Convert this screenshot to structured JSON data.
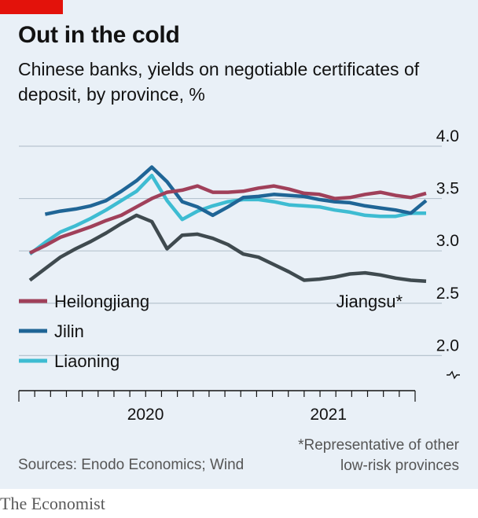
{
  "header": {
    "title": "Out in the cold",
    "subtitle": "Chinese banks, yields on negotiable certificates of deposit, by province, %"
  },
  "footer": {
    "source": "Sources: Enodo Economics; Wind",
    "footnote_line1": "*Representative of other",
    "footnote_line2": "low-risk provinces",
    "brand": "The Economist"
  },
  "colors": {
    "background": "#e9f0f7",
    "accent": "#e3120b",
    "grid": "#b7c4cf",
    "Heilongjiang": "#a0405a",
    "Jilin": "#1f6596",
    "Liaoning": "#3ebcd2",
    "Jiangsu": "#3f4a4f"
  },
  "chart_data": {
    "type": "line",
    "ylim": [
      1.95,
      4.0
    ],
    "y_ticks": [
      2.0,
      2.5,
      3.0,
      3.5,
      4.0
    ],
    "y_tick_labels": [
      "2.0",
      "2.5",
      "3.0",
      "3.5",
      "4.0"
    ],
    "y_axis_broken": true,
    "grid": true,
    "x_tick_labels": [
      {
        "label": "2020",
        "x": "2020-06"
      },
      {
        "label": "2021",
        "x": "2021-06"
      }
    ],
    "x_ticks": [
      "2019-10",
      "2019-11",
      "2019-12",
      "2020-01",
      "2020-02",
      "2020-03",
      "2020-04",
      "2020-05",
      "2020-06",
      "2020-07",
      "2020-08",
      "2020-09",
      "2020-10",
      "2020-11",
      "2020-12",
      "2021-01",
      "2021-02",
      "2021-03",
      "2021-04",
      "2021-05",
      "2021-06",
      "2021-07",
      "2021-08",
      "2021-09",
      "2021-10",
      "2021-11",
      "2021-12"
    ],
    "x": [
      "2019-10",
      "2019-11",
      "2019-12",
      "2020-01",
      "2020-02",
      "2020-03",
      "2020-04",
      "2020-05",
      "2020-06",
      "2020-07",
      "2020-08",
      "2020-09",
      "2020-10",
      "2020-11",
      "2020-12",
      "2021-01",
      "2021-02",
      "2021-03",
      "2021-04",
      "2021-05",
      "2021-06",
      "2021-07",
      "2021-08",
      "2021-09",
      "2021-10",
      "2021-11",
      "2021-12"
    ],
    "series": [
      {
        "name": "Heilongjiang",
        "values": [
          2.98,
          3.05,
          3.13,
          3.18,
          3.23,
          3.29,
          3.34,
          3.42,
          3.5,
          3.56,
          3.58,
          3.62,
          3.56,
          3.56,
          3.57,
          3.6,
          3.62,
          3.59,
          3.55,
          3.54,
          3.5,
          3.51,
          3.54,
          3.56,
          3.53,
          3.51,
          3.55
        ]
      },
      {
        "name": "Jilin",
        "values": [
          null,
          3.35,
          3.38,
          3.4,
          3.43,
          3.48,
          3.57,
          3.67,
          3.8,
          3.66,
          3.47,
          3.42,
          3.34,
          3.42,
          3.51,
          3.52,
          3.54,
          3.53,
          3.52,
          3.49,
          3.47,
          3.46,
          3.43,
          3.41,
          3.39,
          3.36,
          3.48
        ]
      },
      {
        "name": "Liaoning",
        "values": [
          2.97,
          3.08,
          3.18,
          3.24,
          3.31,
          3.39,
          3.48,
          3.57,
          3.72,
          3.48,
          3.3,
          3.38,
          3.43,
          3.47,
          3.49,
          3.49,
          3.47,
          3.44,
          3.43,
          3.42,
          3.39,
          3.37,
          3.34,
          3.33,
          3.33,
          3.36,
          3.36
        ]
      },
      {
        "name": "Jiangsu*",
        "values": [
          2.72,
          2.83,
          2.94,
          3.02,
          3.09,
          3.17,
          3.26,
          3.34,
          3.28,
          3.02,
          3.15,
          3.16,
          3.12,
          3.06,
          2.97,
          2.94,
          2.87,
          2.8,
          2.72,
          2.73,
          2.75,
          2.78,
          2.79,
          2.77,
          2.74,
          2.72,
          2.71
        ]
      }
    ],
    "legend": {
      "placement": "bottom-left",
      "entries": [
        "Heilongjiang",
        "Jilin",
        "Liaoning"
      ]
    },
    "annotation": "Jiangsu*"
  }
}
